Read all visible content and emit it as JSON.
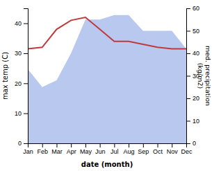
{
  "chart_data": {
    "type": "line",
    "xlabel": "date (month)",
    "ylabel": "max temp (C)",
    "y2label": "med. precipitation\n(kg/m2)",
    "categories": [
      "Jan",
      "Feb",
      "Mar",
      "Apr",
      "May",
      "Jun",
      "Jul",
      "Aug",
      "Sep",
      "Oct",
      "Nov",
      "Dec"
    ],
    "series": [
      {
        "type": "area",
        "axis": "y2",
        "color": "#b8c8ee",
        "values": [
          33,
          25,
          28,
          40,
          55,
          55,
          57,
          57,
          50,
          50,
          50,
          42
        ]
      },
      {
        "type": "line",
        "color": "#c0393b",
        "values": [
          31.5,
          32,
          38,
          41,
          42,
          38,
          34,
          34,
          33,
          32,
          31.5,
          31.5
        ]
      }
    ],
    "ylim": [
      0,
      45
    ],
    "yticks": [
      0,
      10,
      20,
      30,
      40
    ],
    "y2lim": [
      0,
      60
    ],
    "y2ticks": [
      0,
      10,
      20,
      30,
      40,
      50,
      60
    ]
  }
}
